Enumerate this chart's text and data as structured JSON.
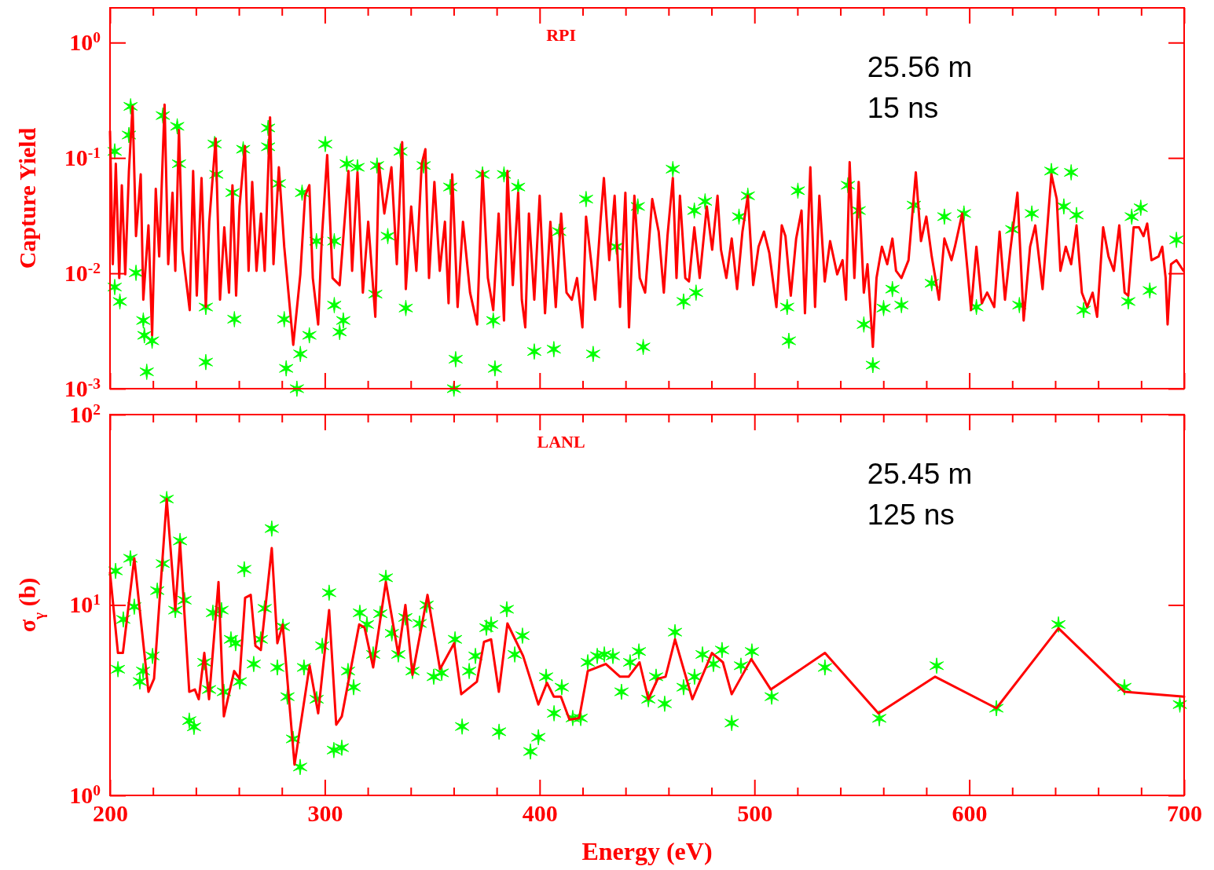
{
  "chart_data": [
    {
      "type": "line",
      "title": "RPI",
      "ylabel": "Capture Yield",
      "annotations": [
        "25.56 m",
        "15 ns"
      ],
      "log": "y",
      "tick_labels": "y",
      "xlim": [
        200,
        700
      ],
      "xticks": [
        200,
        {
          "value": 220,
          "label": null
        },
        {
          "value": 240,
          "label": null
        },
        {
          "value": 260,
          "label": null
        },
        {
          "value": 280,
          "label": null
        },
        300,
        {
          "value": 320,
          "label": null
        },
        {
          "value": 340,
          "label": null
        },
        {
          "value": 360,
          "label": null
        },
        {
          "value": 380,
          "label": null
        },
        400,
        {
          "value": 420,
          "label": null
        },
        {
          "value": 440,
          "label": null
        },
        {
          "value": 460,
          "label": null
        },
        {
          "value": 480,
          "label": null
        },
        500,
        {
          "value": 520,
          "label": null
        },
        {
          "value": 540,
          "label": null
        },
        {
          "value": 560,
          "label": null
        },
        {
          "value": 580,
          "label": null
        },
        600,
        {
          "value": 620,
          "label": null
        },
        {
          "value": 640,
          "label": null
        },
        {
          "value": 660,
          "label": null
        },
        {
          "value": 680,
          "label": null
        },
        700
      ],
      "ylim": [
        0.001,
        2
      ],
      "yticks": [
        {
          "value": 0.001,
          "label": "10$^{-3}$"
        },
        {
          "value": 0.01,
          "label": "10$^{-2}$"
        },
        {
          "value": 0.1,
          "label": "10$^{-1}$"
        },
        {
          "value": 1,
          "label": "10$^{0}$"
        }
      ],
      "series": [
        {
          "color": "#ff0000",
          "x": [
            200.0,
            201.3,
            202.7,
            204.3,
            205.5,
            207.1,
            208.8,
            210.5,
            212.1,
            214.3,
            215.5,
            217.9,
            219.6,
            221.3,
            222.9,
            225.4,
            227.1,
            229.1,
            230.4,
            232.1,
            233.7,
            237.1,
            238.7,
            240.4,
            242.6,
            244.6,
            246.2,
            249.2,
            251.2,
            253.2,
            255.4,
            257.0,
            258.7,
            260.3,
            262.8,
            264.5,
            266.2,
            268.2,
            270.3,
            272.0,
            274.5,
            276.1,
            278.6,
            281.1,
            285.3,
            288.6,
            290.8,
            292.8,
            294.4,
            296.9,
            298.6,
            301.1,
            303.6,
            306.9,
            311.0,
            312.7,
            315.2,
            317.7,
            320.2,
            323.5,
            325.2,
            327.7,
            331.0,
            333.5,
            336.0,
            337.7,
            340.2,
            342.6,
            345.1,
            346.8,
            348.5,
            351.0,
            353.5,
            355.9,
            357.6,
            359.3,
            361.8,
            364.3,
            367.6,
            370.9,
            373.4,
            375.9,
            378.4,
            380.9,
            383.4,
            385.0,
            387.5,
            390.0,
            391.7,
            393.3,
            395.0,
            397.5,
            400.0,
            402.5,
            405.0,
            407.5,
            410.0,
            412.5,
            415.0,
            417.4,
            419.9,
            421.6,
            424.1,
            425.8,
            428.3,
            429.9,
            432.4,
            434.9,
            437.4,
            439.9,
            441.6,
            444.1,
            446.6,
            449.1,
            452.4,
            455.4,
            457.8,
            459.5,
            462.0,
            463.7,
            465.3,
            467.8,
            469.5,
            472.0,
            474.5,
            477.8,
            480.3,
            482.8,
            484.4,
            486.9,
            489.4,
            491.9,
            494.4,
            496.9,
            499.4,
            501.9,
            504.4,
            506.9,
            510.2,
            512.7,
            514.4,
            516.9,
            519.4,
            521.9,
            523.5,
            526.0,
            528.2,
            530.2,
            532.7,
            535.2,
            538.5,
            541.0,
            542.6,
            544.3,
            546.5,
            548.5,
            550.9,
            552.6,
            555.1,
            556.8,
            559.3,
            561.8,
            564.2,
            565.9,
            568.4,
            571.7,
            575.1,
            577.5,
            580.0,
            582.5,
            585.9,
            588.4,
            591.7,
            593.3,
            596.7,
            599.2,
            600.8,
            603.3,
            605.8,
            608.3,
            611.6,
            614.1,
            616.6,
            619.1,
            622.4,
            625.3,
            628.3,
            630.7,
            634.1,
            638.2,
            640.7,
            642.4,
            644.9,
            647.4,
            649.9,
            652.4,
            654.9,
            657.4,
            659.5,
            662.3,
            664.8,
            667.3,
            669.8,
            672.3,
            674.0,
            676.5,
            679.0,
            681.1,
            682.8,
            684.8,
            688.1,
            689.8,
            691.4,
            692.3,
            693.9,
            696.4,
            699.7
          ],
          "values": [
            0.17,
            0.012,
            0.089,
            0.0091,
            0.058,
            0.0098,
            0.077,
            0.28,
            0.021,
            0.072,
            0.0059,
            0.026,
            0.0029,
            0.054,
            0.014,
            0.29,
            0.012,
            0.05,
            0.0105,
            0.175,
            0.016,
            0.0048,
            0.077,
            0.0064,
            0.067,
            0.0051,
            0.028,
            0.147,
            0.0059,
            0.025,
            0.0068,
            0.058,
            0.0064,
            0.038,
            0.127,
            0.0105,
            0.062,
            0.0105,
            0.033,
            0.0105,
            0.225,
            0.012,
            0.083,
            0.017,
            0.0024,
            0.0098,
            0.047,
            0.058,
            0.0091,
            0.0036,
            0.02,
            0.106,
            0.0091,
            0.0079,
            0.077,
            0.0105,
            0.075,
            0.0068,
            0.028,
            0.0042,
            0.089,
            0.033,
            0.083,
            0.012,
            0.137,
            0.0073,
            0.038,
            0.0105,
            0.089,
            0.119,
            0.0091,
            0.062,
            0.0105,
            0.028,
            0.0055,
            0.072,
            0.0051,
            0.028,
            0.0068,
            0.0036,
            0.077,
            0.0091,
            0.0048,
            0.033,
            0.0039,
            0.077,
            0.0079,
            0.05,
            0.0059,
            0.0034,
            0.033,
            0.0059,
            0.047,
            0.0045,
            0.028,
            0.0051,
            0.033,
            0.0068,
            0.0059,
            0.0091,
            0.0034,
            0.031,
            0.012,
            0.0059,
            0.028,
            0.067,
            0.013,
            0.047,
            0.0051,
            0.05,
            0.0034,
            0.047,
            0.0091,
            0.0068,
            0.044,
            0.023,
            0.0068,
            0.021,
            0.067,
            0.0091,
            0.047,
            0.0091,
            0.0085,
            0.025,
            0.0091,
            0.038,
            0.016,
            0.047,
            0.016,
            0.0091,
            0.02,
            0.0073,
            0.023,
            0.047,
            0.0079,
            0.017,
            0.023,
            0.015,
            0.0051,
            0.026,
            0.021,
            0.0064,
            0.02,
            0.035,
            0.0045,
            0.083,
            0.0051,
            0.047,
            0.0085,
            0.019,
            0.0098,
            0.013,
            0.0059,
            0.092,
            0.0091,
            0.062,
            0.0068,
            0.012,
            0.0023,
            0.0091,
            0.017,
            0.012,
            0.02,
            0.0105,
            0.0091,
            0.013,
            0.075,
            0.019,
            0.031,
            0.014,
            0.0059,
            0.02,
            0.013,
            0.017,
            0.033,
            0.0105,
            0.0048,
            0.017,
            0.0055,
            0.0068,
            0.0051,
            0.023,
            0.0059,
            0.016,
            0.05,
            0.0039,
            0.017,
            0.026,
            0.0073,
            0.072,
            0.044,
            0.0105,
            0.017,
            0.012,
            0.026,
            0.0068,
            0.0051,
            0.0068,
            0.0042,
            0.025,
            0.014,
            0.0105,
            0.026,
            0.0068,
            0.0064,
            0.025,
            0.025,
            0.021,
            0.027,
            0.013,
            0.014,
            0.017,
            0.0091,
            0.0036,
            0.012,
            0.013,
            0.0105
          ]
        },
        {
          "type": "scatter",
          "marker": "cross",
          "color": "#00ff00",
          "x": [
            209.6,
            208.8,
            202.2,
            224.6,
            231.3,
            232.1,
            248.7,
            249.5,
            262.0,
            257.0,
            273.6,
            273.6,
            278.6,
            300.2,
            310.2,
            315.2,
            324.3,
            335.2,
            346.0,
            358.4,
            373.4,
            383.4,
            390.0,
            421.6,
            445.7,
            204.6,
            202.2,
            212.1,
            215.5,
            216.0,
            219.6,
            217.1,
            244.6,
            257.9,
            244.6,
            281.1,
            282.0,
            288.6,
            287.0,
            292.8,
            306.9,
            308.6,
            304.4,
            337.7,
            323.5,
            360.9,
            360.1,
            378.4,
            379.2,
            397.5,
            406.6,
            424.9,
            448.2,
            296.1,
            304.4,
            329.3,
            289.4,
            409.1,
            435.7,
            462.0,
            477.0,
            472.0,
            492.8,
            496.9,
            520.2,
            543.5,
            548.5,
            467.0,
            472.8,
            516.0,
            515.2,
            550.9,
            555.1,
            560.1,
            568.4,
            564.2,
            574.2,
            582.5,
            588.4,
            597.5,
            603.3,
            620.0,
            623.3,
            629.1,
            638.2,
            647.4,
            644.0,
            649.9,
            653.2,
            674.0,
            675.6,
            679.8,
            696.4,
            684.0
          ],
          "values": [
            0.28,
            0.158,
            0.114,
            0.233,
            0.188,
            0.089,
            0.132,
            0.072,
            0.119,
            0.05,
            0.182,
            0.125,
            0.06,
            0.132,
            0.089,
            0.083,
            0.086,
            0.114,
            0.086,
            0.056,
            0.072,
            0.072,
            0.056,
            0.044,
            0.038,
            0.0057,
            0.0076,
            0.0101,
            0.0039,
            0.0029,
            0.0026,
            0.0014,
            0.0017,
            0.004,
            0.0051,
            0.004,
            0.0015,
            0.002,
            0.001,
            0.0029,
            0.0031,
            0.0039,
            0.0053,
            0.005,
            0.0066,
            0.0018,
            0.001,
            0.0039,
            0.0015,
            0.0021,
            0.0022,
            0.002,
            0.0023,
            0.019,
            0.019,
            0.021,
            0.05,
            0.023,
            0.017,
            0.08,
            0.042,
            0.035,
            0.031,
            0.047,
            0.052,
            0.058,
            0.035,
            0.0057,
            0.0068,
            0.0026,
            0.0051,
            0.0036,
            0.0016,
            0.005,
            0.0053,
            0.0073,
            0.039,
            0.0082,
            0.031,
            0.033,
            0.0051,
            0.024,
            0.0053,
            0.033,
            0.077,
            0.075,
            0.038,
            0.032,
            0.0048,
            0.0057,
            0.031,
            0.037,
            0.0195,
            0.0071
          ]
        }
      ]
    },
    {
      "type": "line",
      "title": "LANL",
      "ylabel": "σ$_{γ}$ (b)",
      "xlabel": "Energy (eV)",
      "annotations": [
        "25.45 m",
        "125 ns"
      ],
      "log": "y",
      "xlim": [
        200,
        700
      ],
      "xticks": [
        200,
        {
          "value": 220,
          "label": null
        },
        {
          "value": 240,
          "label": null
        },
        {
          "value": 260,
          "label": null
        },
        {
          "value": 280,
          "label": null
        },
        300,
        {
          "value": 320,
          "label": null
        },
        {
          "value": 340,
          "label": null
        },
        {
          "value": 360,
          "label": null
        },
        {
          "value": 380,
          "label": null
        },
        400,
        {
          "value": 420,
          "label": null
        },
        {
          "value": 440,
          "label": null
        },
        {
          "value": 460,
          "label": null
        },
        {
          "value": 480,
          "label": null
        },
        500,
        {
          "value": 520,
          "label": null
        },
        {
          "value": 540,
          "label": null
        },
        {
          "value": 560,
          "label": null
        },
        {
          "value": 580,
          "label": null
        },
        600,
        {
          "value": 620,
          "label": null
        },
        {
          "value": 640,
          "label": null
        },
        {
          "value": 660,
          "label": null
        },
        {
          "value": 680,
          "label": null
        },
        700
      ],
      "ylim": [
        1,
        100
      ],
      "yticks": [
        {
          "value": 1,
          "label": "10$^{0}$"
        },
        {
          "value": 10,
          "label": "10$^{1}$"
        },
        {
          "value": 100,
          "label": "10$^{2}$"
        }
      ],
      "series": [
        {
          "color": "#ff0000",
          "x": [
            200,
            203.7,
            206,
            211.3,
            217.9,
            220.5,
            226.4,
            230.4,
            232.6,
            236.9,
            239.5,
            241.3,
            243.9,
            246.1,
            250.5,
            253,
            257.8,
            260.3,
            262.9,
            265.5,
            267.7,
            270.2,
            275.3,
            277.9,
            280.4,
            285.9,
            292.9,
            296.9,
            302,
            305.3,
            307.9,
            316,
            318.5,
            322.5,
            328.4,
            334.2,
            337.5,
            340.8,
            347.8,
            353.6,
            360.2,
            363.5,
            370.8,
            374.1,
            377.4,
            381,
            385,
            392.3,
            399.4,
            403.4,
            406.6,
            409.9,
            413.9,
            418.4,
            422.4,
            430.8,
            437.4,
            441.4,
            446.5,
            450.6,
            455,
            458.6,
            463,
            471.1,
            480.2,
            485.3,
            489.4,
            498.5,
            507.6,
            532.8,
            557.7,
            584.1,
            612.6,
            641.5,
            672.2,
            700
          ],
          "values": [
            14.8,
            5.6,
            5.6,
            17.6,
            3.5,
            4.1,
            36,
            9.4,
            21.3,
            3.5,
            3.6,
            3.2,
            5.6,
            3.2,
            13.2,
            2.6,
            4.5,
            4.1,
            10.9,
            11.3,
            6.1,
            5.8,
            19.9,
            6.3,
            7.9,
            1.45,
            4.8,
            2.7,
            9.4,
            2.35,
            2.6,
            7.9,
            7.6,
            4.7,
            13.2,
            5.5,
            10,
            4.3,
            11.3,
            4.6,
            6.3,
            3.4,
            3.96,
            6.4,
            6.6,
            3.5,
            8,
            5.4,
            3,
            3.9,
            3.3,
            3.3,
            2.5,
            2.55,
            4.5,
            4.9,
            4.2,
            4.2,
            5,
            3.2,
            4.1,
            4.2,
            6.6,
            3.2,
            5.6,
            5,
            3.4,
            5.2,
            3.6,
            5.6,
            2.7,
            4.2,
            2.87,
            7.55,
            3.5,
            3.3
          ]
        },
        {
          "type": "scatter",
          "marker": "cross",
          "color": "#00ff00",
          "x": [
            202.6,
            203.7,
            206.2,
            209.5,
            211.3,
            213.9,
            215.4,
            219.8,
            222,
            224.6,
            226.4,
            230.4,
            232.6,
            234.7,
            236.9,
            239.1,
            243.9,
            246.1,
            247.9,
            251.9,
            253,
            256.3,
            258.5,
            260.4,
            262.5,
            266.9,
            270.2,
            275.3,
            272,
            277.9,
            280.5,
            282.6,
            285.2,
            288.5,
            290.3,
            296.2,
            298.8,
            302,
            304.2,
            307.9,
            310.8,
            313.4,
            316.3,
            319.6,
            322.5,
            325.8,
            328.4,
            331.2,
            334.2,
            337.5,
            340.8,
            344.1,
            347.4,
            350.7,
            354.4,
            360.6,
            363.9,
            367.2,
            370.1,
            375.2,
            377.4,
            381.1,
            384.7,
            388.4,
            392,
            395.7,
            399.4,
            403,
            406.7,
            410.3,
            415.4,
            419.1,
            422.4,
            426.8,
            430.1,
            434.1,
            438.1,
            442.1,
            446.2,
            450.6,
            454.2,
            458.2,
            463,
            467,
            472.1,
            475.8,
            480.9,
            484.9,
            489.4,
            493.7,
            498.8,
            508,
            532.8,
            558.1,
            584.8,
            612.6,
            641.5,
            672.2,
            698
          ],
          "values": [
            15.1,
            4.6,
            8.4,
            17.6,
            9.8,
            3.96,
            4.5,
            5.4,
            11.9,
            16.5,
            36,
            9.4,
            21.7,
            10.6,
            2.47,
            2.29,
            5,
            3.6,
            9.1,
            9.4,
            3.5,
            6.6,
            6.3,
            3.96,
            15.4,
            4.9,
            6.6,
            25.2,
            9.6,
            4.7,
            7.7,
            3.3,
            1.98,
            1.41,
            4.7,
            3.2,
            6.1,
            11.6,
            1.73,
            1.78,
            4.5,
            3.7,
            9.1,
            7.9,
            5.5,
            9,
            13.9,
            7.1,
            5.5,
            8.6,
            4.5,
            8,
            10,
            4.2,
            4.4,
            6.6,
            2.3,
            4.5,
            5.4,
            7.6,
            7.9,
            2.16,
            9.5,
            5.5,
            6.9,
            1.7,
            2.02,
            4.2,
            2.7,
            3.7,
            2.55,
            2.55,
            5,
            5.4,
            5.5,
            5.4,
            3.5,
            5,
            5.7,
            3.2,
            4.2,
            3.03,
            7.2,
            3.7,
            4.2,
            5.5,
            4.9,
            5.8,
            2.4,
            4.8,
            5.7,
            3.3,
            4.7,
            2.54,
            4.8,
            2.87,
            7.9,
            3.7,
            3
          ]
        }
      ]
    }
  ]
}
